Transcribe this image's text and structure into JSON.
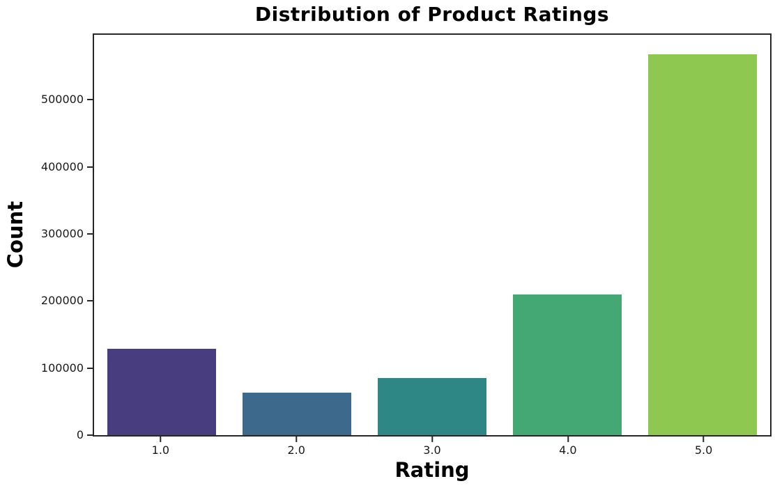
{
  "chart_data": {
    "type": "bar",
    "title": "Distribution of Product Ratings",
    "xlabel": "Rating",
    "ylabel": "Count",
    "categories": [
      "1.0",
      "2.0",
      "3.0",
      "4.0",
      "5.0"
    ],
    "values": [
      129000,
      63000,
      85000,
      210000,
      568000
    ],
    "bar_colors": [
      "#483d7f",
      "#3d698d",
      "#2e8685",
      "#43a874",
      "#8ec850"
    ],
    "yticks": [
      0,
      100000,
      200000,
      300000,
      400000,
      500000
    ],
    "ytick_labels": [
      "0",
      "100000",
      "200000",
      "300000",
      "400000",
      "500000"
    ],
    "ylim": [
      0,
      597000
    ],
    "bar_width_fraction": 0.8,
    "grid": false,
    "legend": "none",
    "palette": "viridis",
    "spine_color": "#262626",
    "background_color": "#ffffff"
  }
}
